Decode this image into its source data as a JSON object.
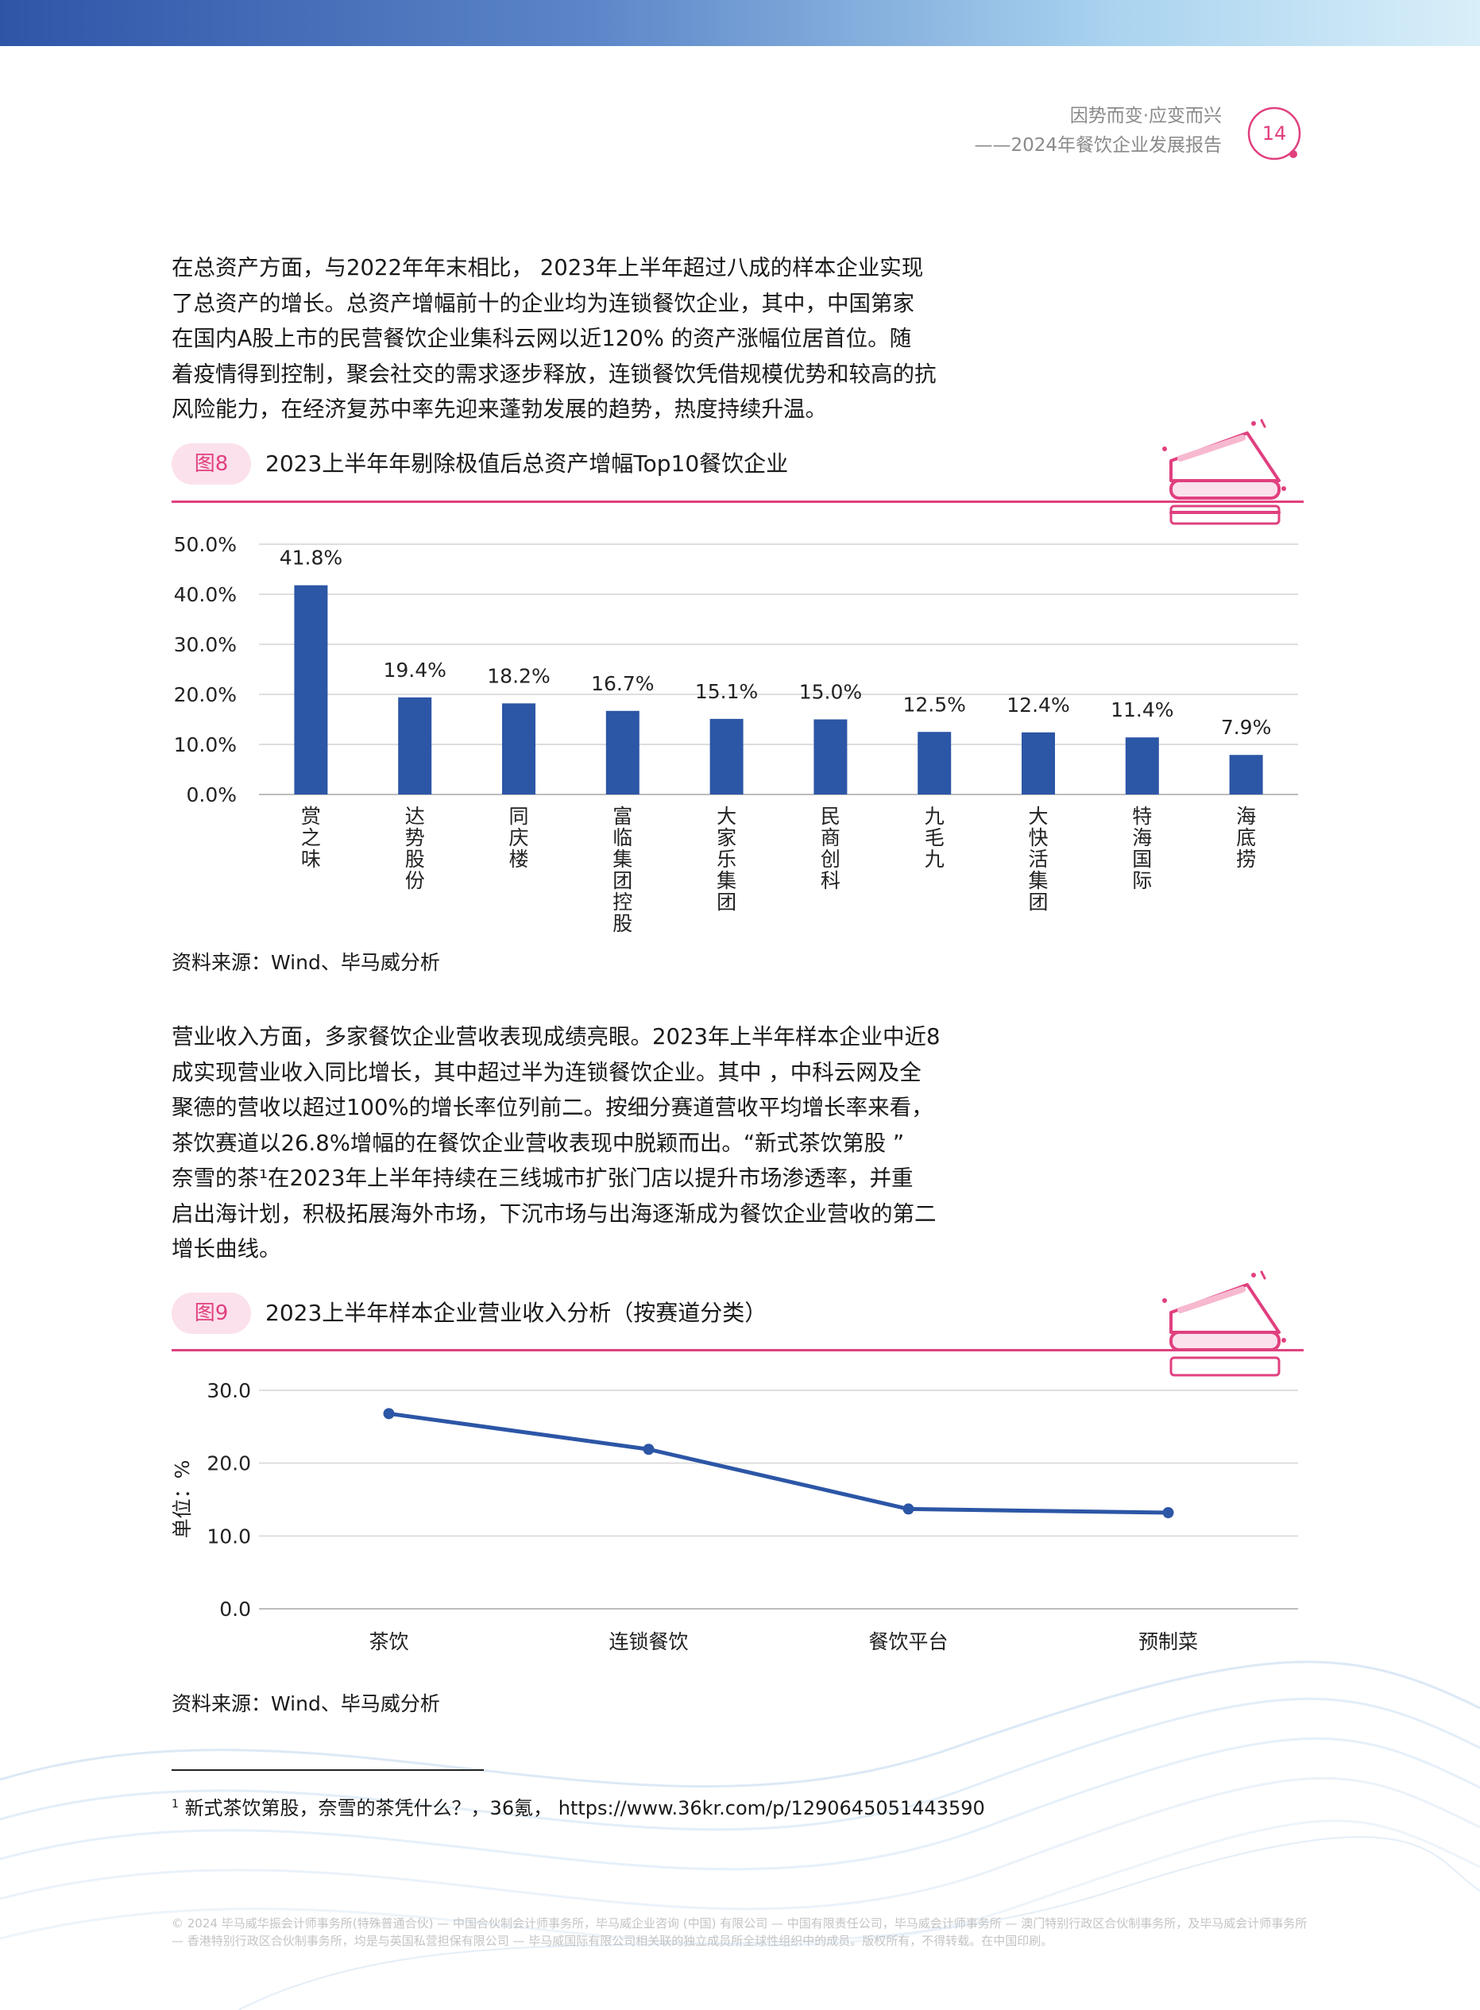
{
  "header": {
    "line1": "因势而变·应变而兴",
    "line2": "——2024年餐饮企业发展报告",
    "page_number": "14"
  },
  "paragraph1": [
    "在总资产方面，与2022年年末相比，        2023年上半年超过八成的样本企业实现",
    "了总资产的增长。总资产增幅前十的企业均为连锁餐饮企业，其中，中国第家",
    "在国内A股上市的民营餐饮企业集科云网以近120%        的资产涨幅位居首位。随",
    "着疫情得到控制，聚会社交的需求逐步释放，连锁餐饮凭借规模优势和较高的抗",
    "风险能力，在经济复苏中率先迎来蓬勃发展的趋势，热度持续升温。"
  ],
  "figure8": {
    "tag": "图8",
    "title": "2023上半年年剔除极值后总资产增幅Top10餐饮企业",
    "source": "资料来源：Wind、毕马威分析"
  },
  "paragraph2": [
    "营业收入方面，多家餐饮企业营收表现成绩亮眼。2023年上半年样本企业中近8",
    "成实现营业收入同比增长，其中超过半为连锁餐饮企业。其中    ，中科云网及全",
    "聚德的营收以超过100%的增长率位列前二。按细分赛道营收平均增长率来看，",
    "茶饮赛道以26.8%增幅的在餐饮企业营收表现中脱颖而出。“新式茶饮第股    ”",
    "奈雪的茶¹在2023年上半年持续在三线城市扩张门店以提升市场渗透率，并重",
    "启出海计划，积极拓展海外市场，下沉市场与出海逐渐成为餐饮企业营收的第二",
    "增长曲线。"
  ],
  "figure9": {
    "tag": "图9",
    "title": "2023上半年样本企业营业收入分析（按赛道分类）",
    "source": "资料来源：Wind、毕马威分析"
  },
  "footnote": {
    "mark": "1",
    "text": "新式茶饮第股，奈雪的茶凭什么？，36氪，    https://www.36kr.com/p/1290645051443590"
  },
  "legal": "© 2024 毕马威华振会计师事务所(特殊普通合伙) — 中国合伙制会计师事务所，毕马威企业咨询 (中国) 有限公司 — 中国有限责任公司，毕马威会计师事务所 — 澳门特别行政区合伙制事务所，及毕马威会计师事务所 — 香港特别行政区合伙制事务所，均是与英国私营担保有限公司 — 毕马威国际有限公司相关联的独立成员所全球性组织中的成员。版权所有，不得转载。在中国印刷。",
  "chart_data": [
    {
      "type": "bar",
      "categories": [
        "赏之味",
        "达势股份",
        "同庆楼",
        "富临集团控股",
        "大家乐集团",
        "民商创科",
        "九毛九",
        "大快活集团",
        "特海国际",
        "海底捞"
      ],
      "values": [
        41.8,
        19.4,
        18.2,
        16.7,
        15.1,
        15.0,
        12.5,
        12.4,
        11.4,
        7.9
      ],
      "data_labels": [
        "41.8%",
        "19.4%",
        "18.2%",
        "16.7%",
        "15.1%",
        "15.0%",
        "12.5%",
        "12.4%",
        "11.4%",
        "7.9%"
      ],
      "y_ticks": [
        "0.0%",
        "10.0%",
        "20.0%",
        "30.0%",
        "40.0%",
        "50.0%"
      ],
      "ylim": [
        0,
        50
      ],
      "grid": true,
      "color": "#2c56a6"
    },
    {
      "type": "line",
      "categories": [
        "茶饮",
        "连锁餐饮",
        "餐饮平台",
        "预制菜"
      ],
      "values": [
        26.8,
        21.9,
        13.7,
        13.2
      ],
      "ylabel": "单位：%",
      "y_ticks": [
        "0.0",
        "10.0",
        "20.0",
        "30.0"
      ],
      "ylim": [
        0,
        30
      ],
      "grid": true,
      "color": "#2c56a6"
    }
  ],
  "colors": {
    "accent": "#e0407f",
    "bar": "#2c56a6",
    "tag_bg": "#fbe1ec"
  }
}
